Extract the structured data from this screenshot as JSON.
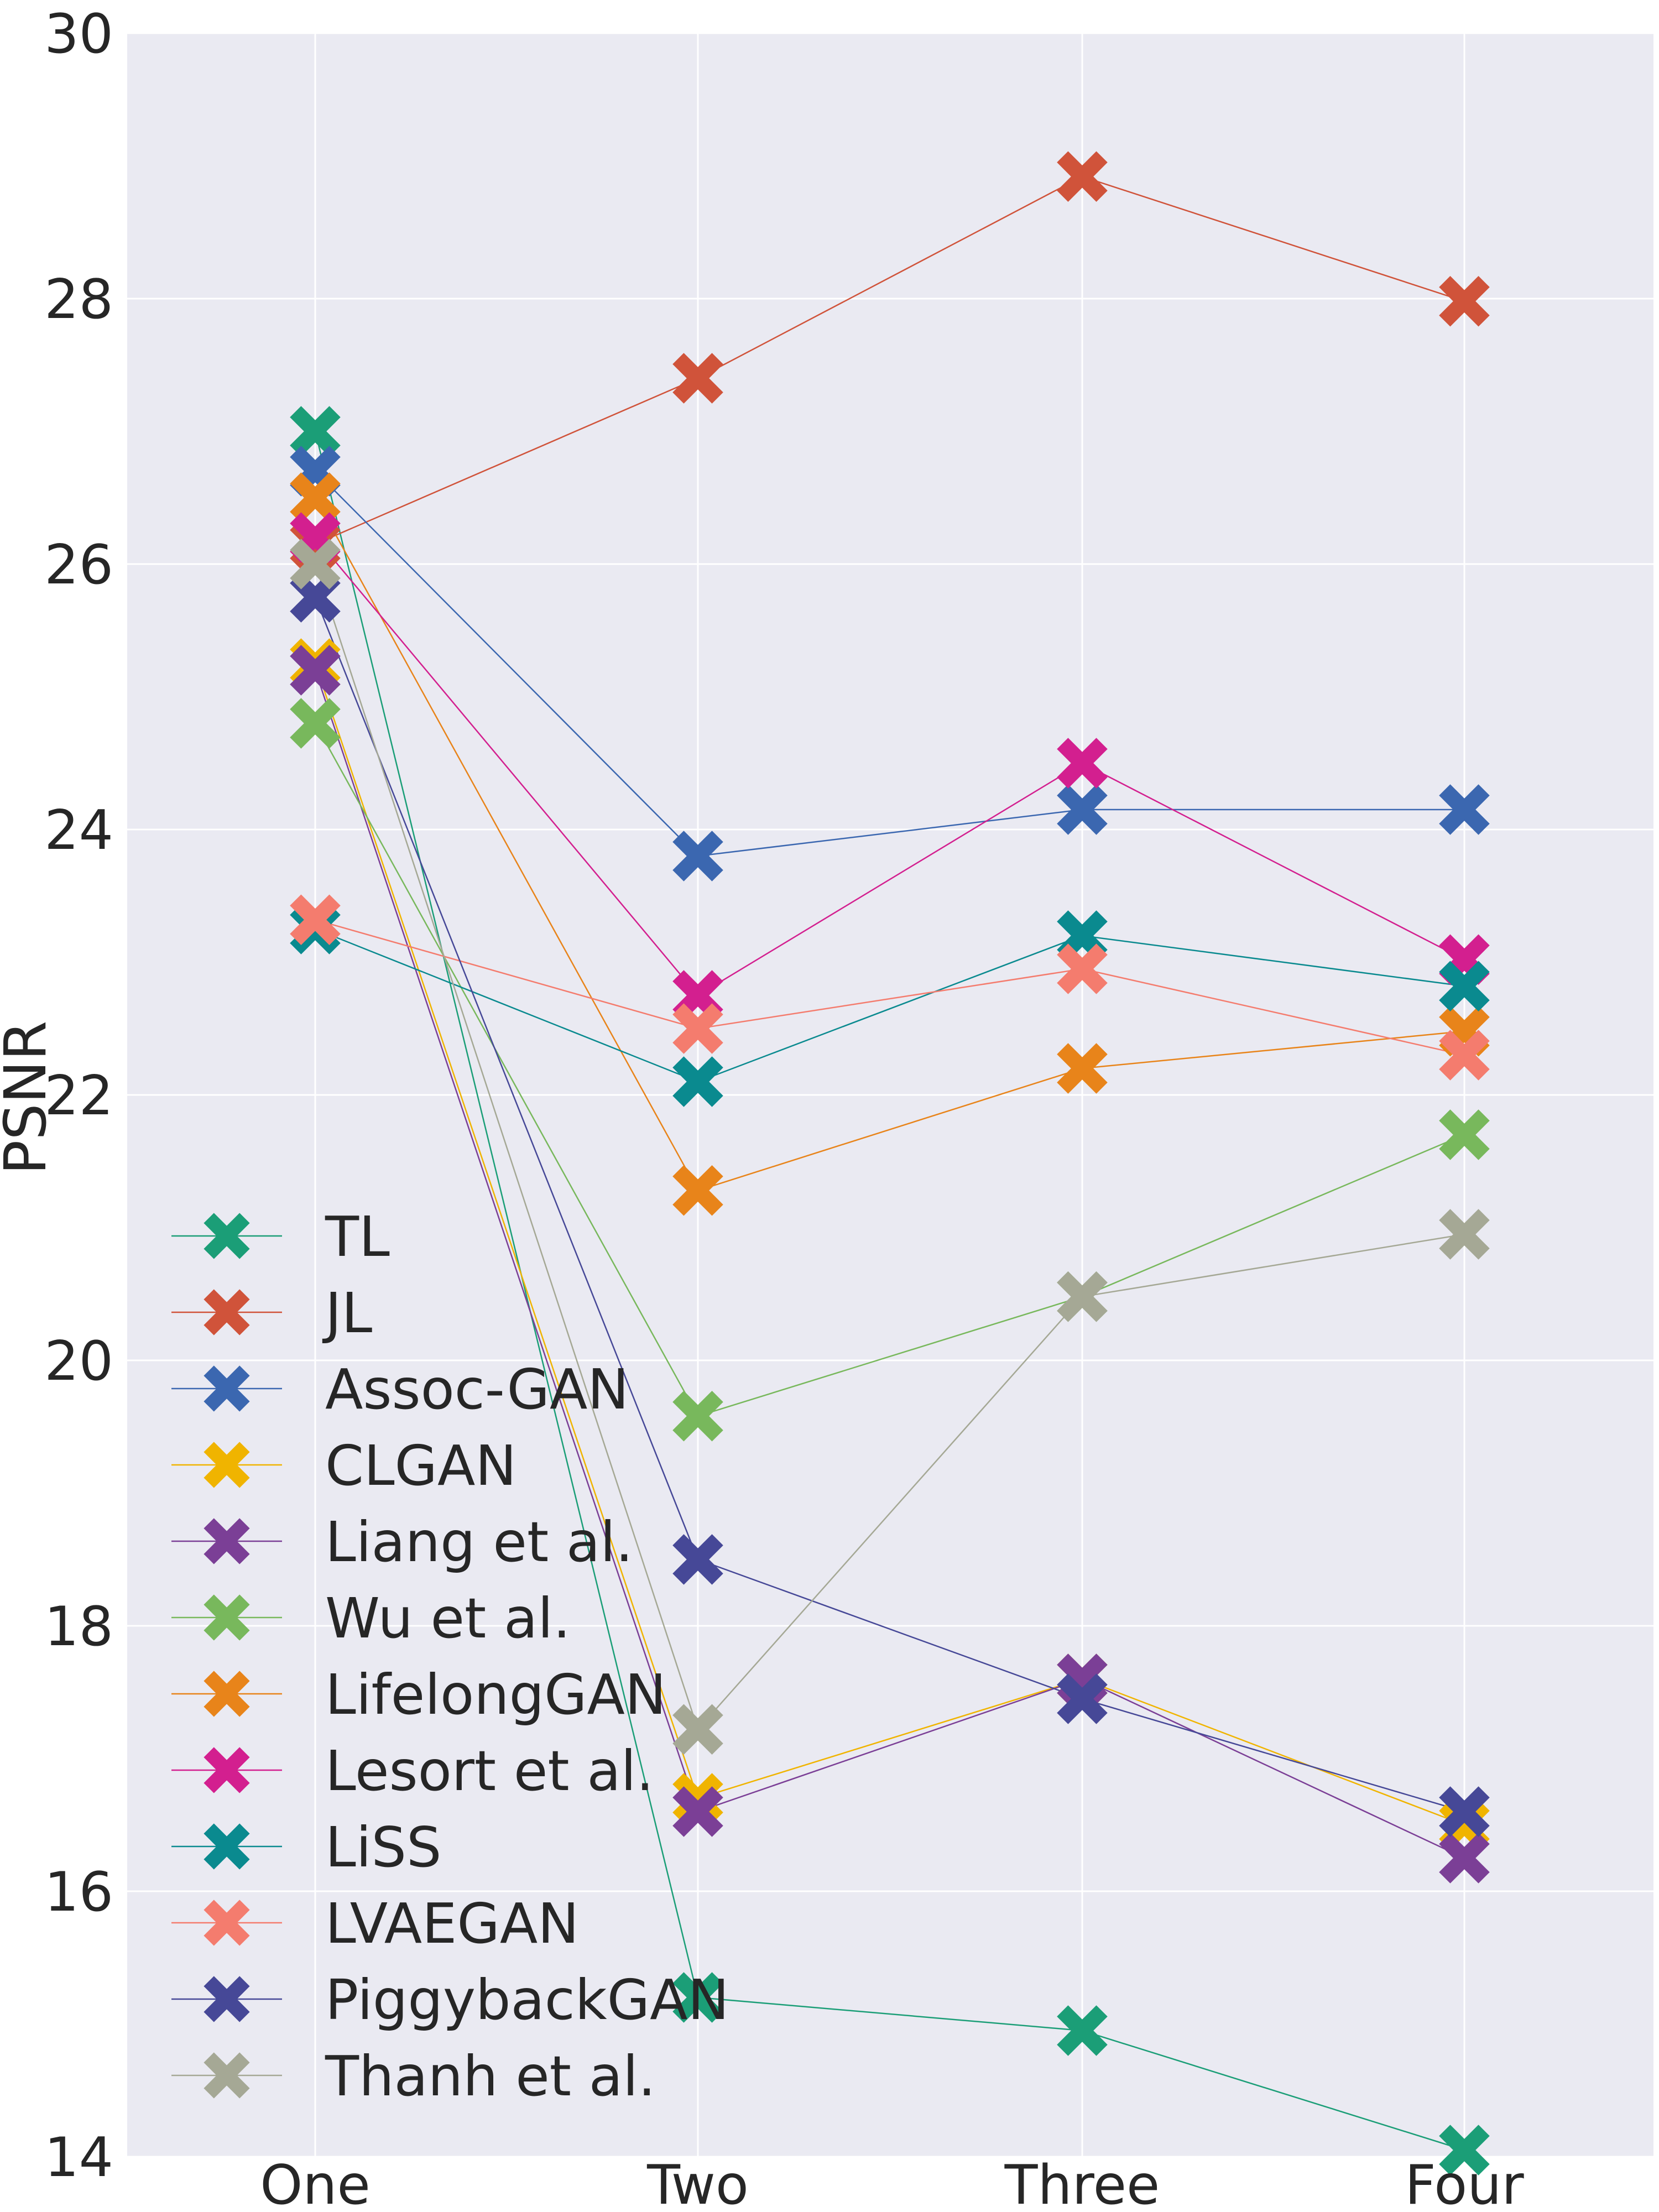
{
  "chart_data": {
    "type": "line",
    "title": "",
    "xlabel": "",
    "ylabel": "PSNR",
    "categories": [
      "One",
      "Two",
      "Three",
      "Four"
    ],
    "ylim": [
      14,
      30
    ],
    "yticks": [
      14,
      16,
      18,
      20,
      22,
      24,
      26,
      28,
      30
    ],
    "grid": true,
    "marker": "X",
    "legend_position": "lower-left",
    "series": [
      {
        "name": "TL",
        "color": "#1b9e77",
        "values": [
          27.0,
          15.2,
          14.95,
          14.05
        ]
      },
      {
        "name": "JL",
        "color": "#d0533a",
        "values": [
          26.15,
          27.4,
          28.92,
          27.98
        ]
      },
      {
        "name": "Assoc-GAN",
        "color": "#3b67b0",
        "values": [
          26.7,
          23.8,
          24.15,
          24.15
        ]
      },
      {
        "name": "CLGAN",
        "color": "#f0b400",
        "values": [
          25.25,
          16.7,
          17.6,
          16.5
        ]
      },
      {
        "name": "Liang et al.",
        "color": "#7b3f96",
        "values": [
          25.2,
          16.6,
          17.6,
          16.25
        ]
      },
      {
        "name": "Wu et al.",
        "color": "#78b85c",
        "values": [
          24.8,
          19.58,
          20.48,
          21.7
        ]
      },
      {
        "name": "LifelongGAN",
        "color": "#e8841a",
        "values": [
          26.5,
          21.28,
          22.2,
          22.48
        ]
      },
      {
        "name": "Lesort et al.",
        "color": "#d31f8f",
        "values": [
          26.2,
          22.75,
          24.5,
          23.02
        ]
      },
      {
        "name": "LiSS",
        "color": "#0a8a8f",
        "values": [
          23.25,
          22.1,
          23.2,
          22.82
        ]
      },
      {
        "name": "LVAEGAN",
        "color": "#f47c6e",
        "values": [
          23.32,
          22.5,
          22.95,
          22.3
        ]
      },
      {
        "name": "PiggybackGAN",
        "color": "#464897",
        "values": [
          25.75,
          18.5,
          17.45,
          16.6
        ]
      },
      {
        "name": "Thanh et al.",
        "color": "#a5a895",
        "values": [
          26.0,
          17.22,
          20.48,
          20.95
        ]
      }
    ]
  }
}
